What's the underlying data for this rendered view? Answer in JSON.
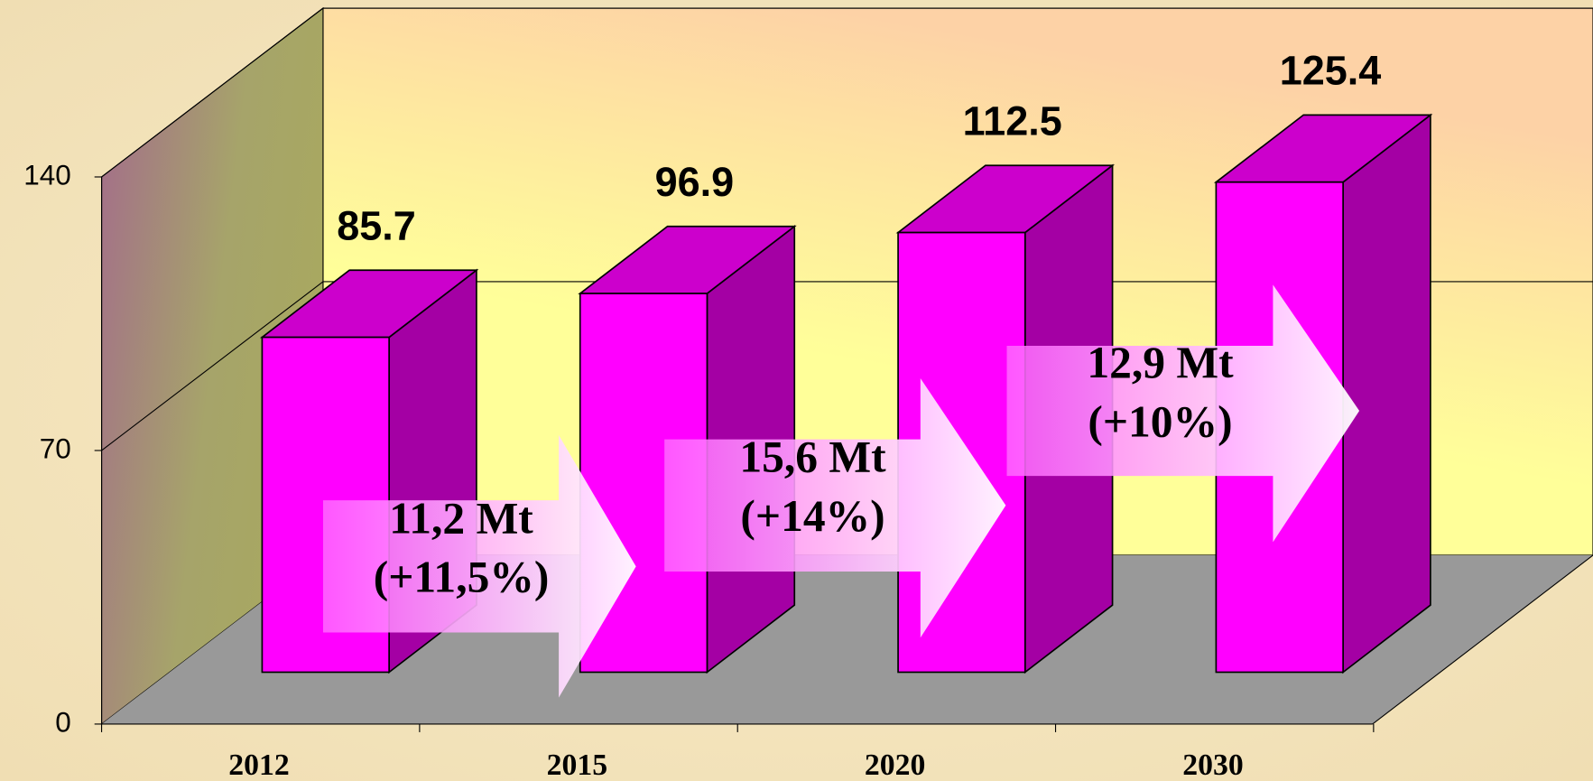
{
  "chart_data": {
    "type": "bar3d",
    "categories": [
      "2012",
      "2015",
      "2020",
      "2030"
    ],
    "values": [
      85.7,
      96.9,
      112.5,
      125.4
    ],
    "color": "#ff00ff",
    "ylim": [
      0,
      140
    ],
    "yticks": [
      0,
      70,
      140
    ],
    "grid": true,
    "annotations": [
      {
        "lines": [
          "11,2 Mt",
          "(+11,5%)"
        ]
      },
      {
        "lines": [
          "15,6 Mt",
          "(+14%)"
        ]
      },
      {
        "lines": [
          "12,9 Mt",
          "(+10%)"
        ]
      }
    ]
  }
}
